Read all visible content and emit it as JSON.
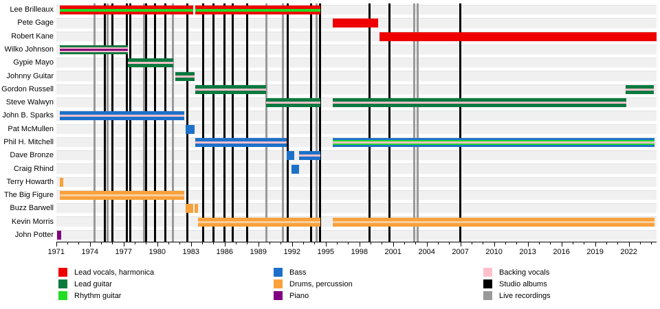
{
  "chart_data": {
    "type": "bar",
    "variant": "band-membership-timeline",
    "title": "",
    "xlabel": "",
    "ylabel": "",
    "axis": {
      "start_year": 1971,
      "end_year": 2024.5,
      "minor_tick_step": 1,
      "label_step": 3,
      "tick_labels": [
        "1971",
        "1974",
        "1977",
        "1980",
        "1983",
        "1986",
        "1989",
        "1992",
        "1995",
        "1998",
        "2001",
        "2004",
        "2007",
        "2010",
        "2013",
        "2016",
        "2019",
        "2022"
      ]
    },
    "palette": {
      "lead_vocals": "#EE0000",
      "lead_guitar": "#0B7A3F",
      "rhythm_guitar": "#22DD22",
      "bass": "#1D71C9",
      "drums": "#F9A13B",
      "piano": "#800080",
      "backing_vocals": "#FFC0CB",
      "backing_on_drums": "#FBCF9E",
      "studio_albums": "#000000",
      "live_recordings": "#999999",
      "band_bg": "#F0F0F0"
    },
    "members": [
      {
        "name": "Lee Brilleaux",
        "segments": [
          {
            "from": 1971.3,
            "to": 1983.2,
            "stripes": [
              "lead_vocals",
              "rhythm_guitar",
              "lead_vocals"
            ],
            "weights": [
              4.5,
              4,
              4.5
            ]
          },
          {
            "from": 1983.4,
            "to": 1994.5,
            "stripes": [
              "lead_vocals",
              "rhythm_guitar",
              "lead_vocals"
            ],
            "weights": [
              4.5,
              4,
              4.5
            ]
          }
        ]
      },
      {
        "name": "Pete Gage",
        "segments": [
          {
            "from": 1995.6,
            "to": 1999.7,
            "stripes": [
              "lead_vocals"
            ],
            "weights": [
              1
            ]
          }
        ]
      },
      {
        "name": "Robert Kane",
        "segments": [
          {
            "from": 1999.8,
            "to": 2024.5,
            "stripes": [
              "lead_vocals"
            ],
            "weights": [
              1
            ]
          }
        ]
      },
      {
        "name": "Wilko Johnson",
        "segments": [
          {
            "from": 1971.3,
            "to": 1977.4,
            "stripes": [
              "lead_guitar",
              "backing_vocals",
              "piano",
              "backing_vocals",
              "lead_guitar"
            ],
            "weights": [
              3,
              2.5,
              3,
              2.5,
              3
            ]
          }
        ]
      },
      {
        "name": "Gypie Mayo",
        "segments": [
          {
            "from": 1977.4,
            "to": 1981.4,
            "stripes": [
              "lead_guitar",
              "backing_vocals",
              "lead_guitar"
            ],
            "weights": [
              5,
              3,
              5
            ]
          }
        ]
      },
      {
        "name": "Johnny Guitar",
        "segments": [
          {
            "from": 1981.6,
            "to": 1983.3,
            "stripes": [
              "lead_guitar",
              "backing_vocals",
              "lead_guitar"
            ],
            "weights": [
              5,
              3,
              5
            ]
          }
        ]
      },
      {
        "name": "Gordon Russell",
        "segments": [
          {
            "from": 1983.4,
            "to": 1989.7,
            "stripes": [
              "lead_guitar",
              "backing_vocals",
              "lead_guitar"
            ],
            "weights": [
              5,
              3,
              5
            ]
          },
          {
            "from": 2021.7,
            "to": 2024.2,
            "stripes": [
              "lead_guitar",
              "backing_vocals",
              "lead_guitar"
            ],
            "weights": [
              5,
              3,
              5
            ]
          }
        ]
      },
      {
        "name": "Steve Walwyn",
        "segments": [
          {
            "from": 1989.7,
            "to": 1994.5,
            "stripes": [
              "lead_guitar",
              "backing_vocals",
              "lead_guitar"
            ],
            "weights": [
              5,
              3,
              5
            ]
          },
          {
            "from": 1995.6,
            "to": 2021.8,
            "stripes": [
              "lead_guitar",
              "backing_vocals",
              "lead_guitar"
            ],
            "weights": [
              5,
              3,
              5
            ]
          }
        ]
      },
      {
        "name": "John B. Sparks",
        "segments": [
          {
            "from": 1971.3,
            "to": 1982.4,
            "stripes": [
              "bass",
              "backing_vocals",
              "bass"
            ],
            "weights": [
              5,
              3,
              5
            ]
          }
        ]
      },
      {
        "name": "Pat McMullen",
        "segments": [
          {
            "from": 1982.5,
            "to": 1983.3,
            "stripes": [
              "bass"
            ],
            "weights": [
              1
            ]
          }
        ]
      },
      {
        "name": "Phil H. Mitchell",
        "segments": [
          {
            "from": 1983.4,
            "to": 1991.5,
            "stripes": [
              "bass",
              "backing_vocals",
              "bass"
            ],
            "weights": [
              5,
              3,
              5
            ]
          },
          {
            "from": 1995.6,
            "to": 2024.3,
            "stripes": [
              "bass",
              "rhythm_guitar",
              "backing_vocals",
              "rhythm_guitar",
              "bass"
            ],
            "weights": [
              3.5,
              2,
              2.5,
              2,
              3.5
            ]
          }
        ]
      },
      {
        "name": "Dave Bronze",
        "segments": [
          {
            "from": 1991.5,
            "to": 1992.2,
            "stripes": [
              "bass"
            ],
            "weights": [
              1
            ]
          },
          {
            "from": 1992.6,
            "to": 1994.5,
            "stripes": [
              "bass",
              "backing_vocals",
              "bass"
            ],
            "weights": [
              5,
              3,
              5
            ]
          }
        ]
      },
      {
        "name": "Craig Rhind",
        "segments": [
          {
            "from": 1991.95,
            "to": 1992.65,
            "stripes": [
              "bass"
            ],
            "weights": [
              1
            ]
          }
        ]
      },
      {
        "name": "Terry Howarth",
        "segments": [
          {
            "from": 1971.3,
            "to": 1971.6,
            "stripes": [
              "drums"
            ],
            "weights": [
              1
            ]
          }
        ]
      },
      {
        "name": "The Big Figure",
        "segments": [
          {
            "from": 1971.3,
            "to": 1982.4,
            "stripes": [
              "drums",
              "backing_on_drums",
              "drums"
            ],
            "weights": [
              5,
              3,
              5
            ]
          }
        ]
      },
      {
        "name": "Buzz Barwell",
        "segments": [
          {
            "from": 1982.5,
            "to": 1983.2,
            "stripes": [
              "drums"
            ],
            "weights": [
              1
            ]
          },
          {
            "from": 1983.35,
            "to": 1983.6,
            "stripes": [
              "drums"
            ],
            "weights": [
              1
            ]
          }
        ]
      },
      {
        "name": "Kevin Morris",
        "segments": [
          {
            "from": 1983.6,
            "to": 1994.5,
            "stripes": [
              "drums",
              "backing_on_drums",
              "drums"
            ],
            "weights": [
              5,
              3,
              5
            ]
          },
          {
            "from": 1995.6,
            "to": 2024.3,
            "stripes": [
              "drums",
              "backing_on_drums",
              "drums"
            ],
            "weights": [
              5,
              3,
              5
            ]
          }
        ]
      },
      {
        "name": "John Potter",
        "segments": [
          {
            "from": 1971.1,
            "to": 1971.45,
            "stripes": [
              "piano"
            ],
            "weights": [
              1
            ]
          }
        ]
      }
    ],
    "events": {
      "studio_albums": [
        1975.3,
        1976.0,
        1977.3,
        1977.6,
        1979.0,
        1979.8,
        1980.7,
        1982.7,
        1984.1,
        1985.0,
        1986.0,
        1986.7,
        1988.0,
        1991.6,
        1993.7,
        1994.5,
        1998.9,
        2000.7,
        2007.0
      ],
      "live_recordings": [
        1974.4,
        1975.6,
        1978.8,
        1981.4,
        1989.7,
        1991.2,
        1994.2,
        2002.9,
        2003.2
      ]
    },
    "legend": {
      "position": "bottom",
      "columns": [
        [
          {
            "label": "Lead vocals, harmonica",
            "color": "lead_vocals"
          },
          {
            "label": "Lead guitar",
            "color": "lead_guitar"
          },
          {
            "label": "Rhythm guitar",
            "color": "rhythm_guitar"
          }
        ],
        [
          {
            "label": "Bass",
            "color": "bass"
          },
          {
            "label": "Drums, percussion",
            "color": "drums"
          },
          {
            "label": "Piano",
            "color": "piano"
          }
        ],
        [
          {
            "label": "Backing vocals",
            "color": "backing_vocals"
          },
          {
            "label": "Studio albums",
            "color": "studio_albums"
          },
          {
            "label": "Live recordings",
            "color": "live_recordings"
          }
        ]
      ]
    }
  }
}
